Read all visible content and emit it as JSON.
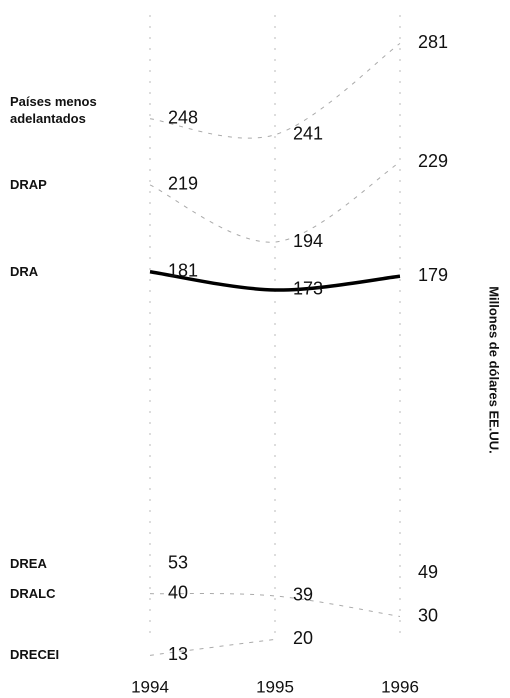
{
  "chart_data": {
    "type": "line",
    "y_label": "Millones de dólares EE.UU.",
    "categories": [
      "1994",
      "1995",
      "1996"
    ],
    "series": [
      {
        "name": "Países menos adelantados",
        "color": "#aaaaaa",
        "values": [
          248,
          241,
          281
        ]
      },
      {
        "name": "DRAP",
        "color": "#aaaaaa",
        "values": [
          219,
          194,
          229
        ]
      },
      {
        "name": "DRA",
        "color": "#000000",
        "values": [
          181,
          173,
          179
        ]
      },
      {
        "name": "DREA",
        "color": "#aaaaaa",
        "values": [
          53,
          null,
          49
        ]
      },
      {
        "name": "DRALC",
        "color": "#aaaaaa",
        "values": [
          40,
          39,
          30
        ]
      },
      {
        "name": "DRECEI",
        "color": "#aaaaaa",
        "values": [
          13,
          20,
          null
        ]
      }
    ],
    "ylim": [
      0,
      300
    ]
  }
}
